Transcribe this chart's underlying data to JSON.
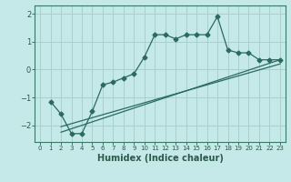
{
  "title": "",
  "xlabel": "Humidex (Indice chaleur)",
  "bg_color": "#c5e8e8",
  "grid_color": "#aacfcf",
  "line_color": "#2a6b60",
  "xlim": [
    -0.5,
    23.5
  ],
  "ylim": [
    -2.6,
    2.3
  ],
  "yticks": [
    -2,
    -1,
    0,
    1,
    2
  ],
  "xticks": [
    0,
    1,
    2,
    3,
    4,
    5,
    6,
    7,
    8,
    9,
    10,
    11,
    12,
    13,
    14,
    15,
    16,
    17,
    18,
    19,
    20,
    21,
    22,
    23
  ],
  "curve1_x": [
    1,
    2,
    3,
    4,
    5,
    6,
    7,
    8,
    9,
    10,
    11,
    12,
    13,
    14,
    15,
    16,
    17,
    18,
    19,
    20,
    21,
    22,
    23
  ],
  "curve1_y": [
    -1.15,
    -1.6,
    -2.3,
    -2.3,
    -1.5,
    -0.55,
    -0.45,
    -0.3,
    -0.15,
    0.45,
    1.25,
    1.25,
    1.1,
    1.25,
    1.25,
    1.25,
    1.9,
    0.7,
    0.6,
    0.6,
    0.35,
    0.35,
    0.35
  ],
  "line2_x": [
    2,
    23
  ],
  "line2_y": [
    -2.25,
    0.35
  ],
  "line3_x": [
    2,
    23
  ],
  "line3_y": [
    -2.05,
    0.2
  ],
  "spine_color": "#3a7a6a",
  "tick_color": "#2a5a4a",
  "xlabel_fontsize": 7,
  "ytick_fontsize": 6,
  "xtick_fontsize": 5
}
